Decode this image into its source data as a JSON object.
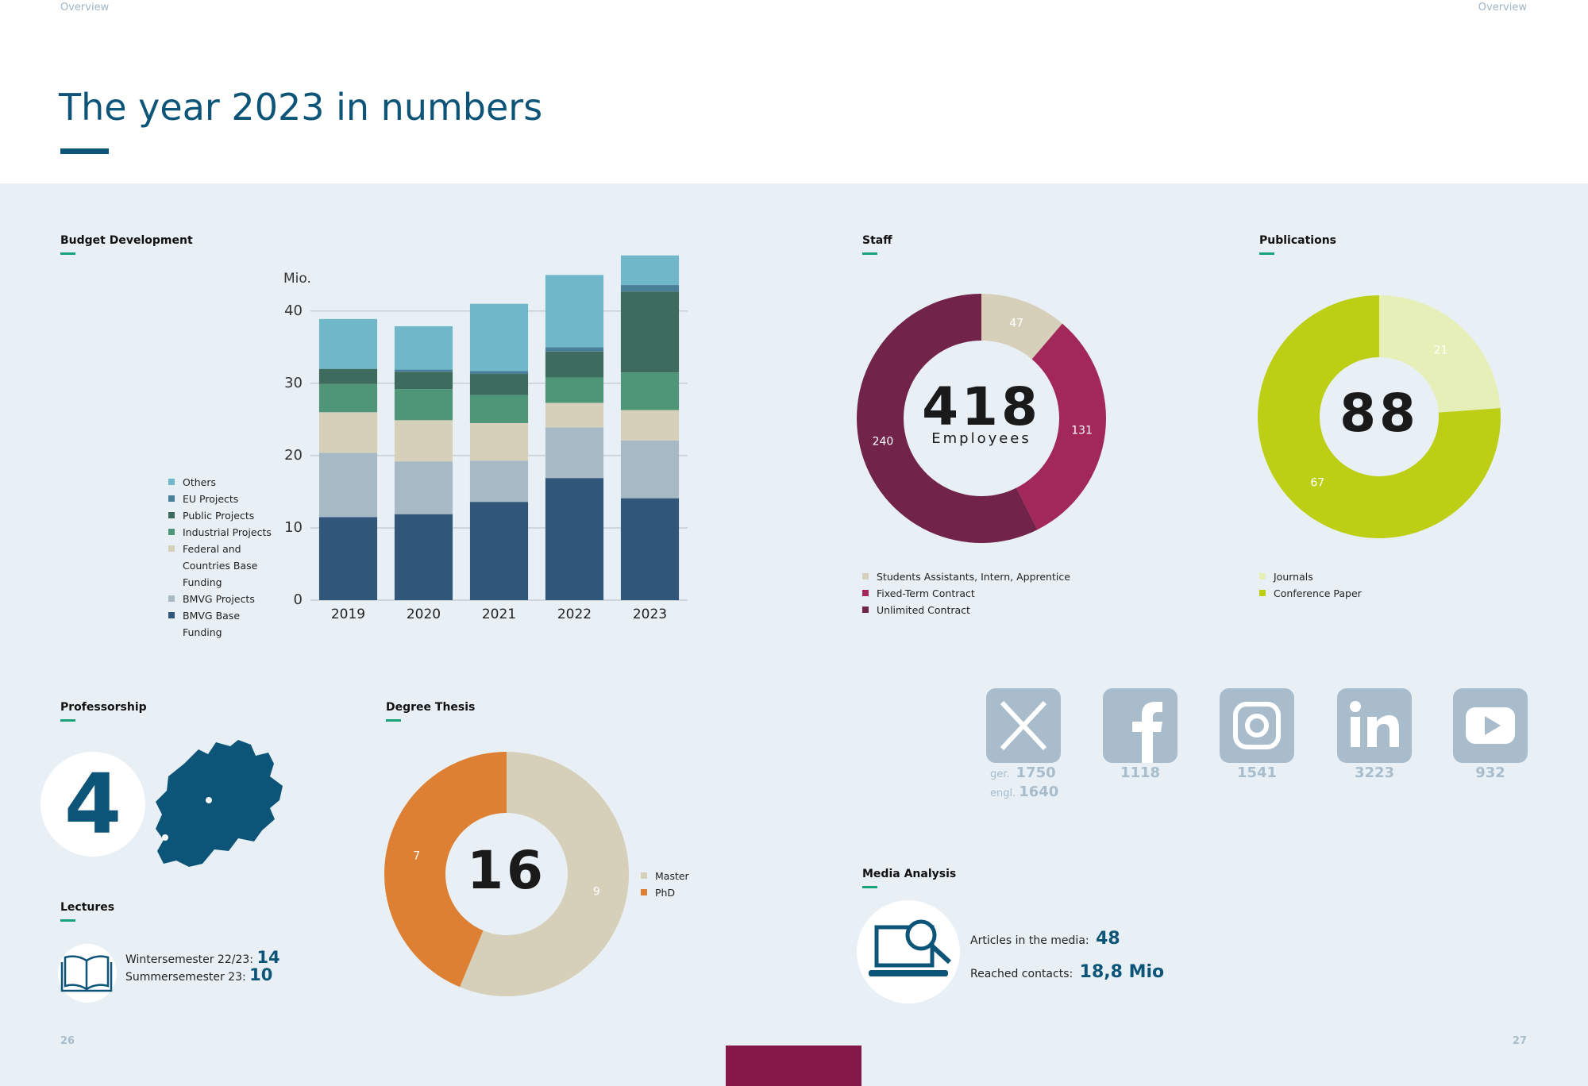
{
  "header": {
    "left": "Overview",
    "right": "Overview",
    "title": "The year 2023 in numbers"
  },
  "chart_data": [
    {
      "type": "bar",
      "stacked": true,
      "title": "Budget Development",
      "ylabel": "Mio.",
      "categories": [
        "2019",
        "2020",
        "2021",
        "2022",
        "2023"
      ],
      "series": [
        {
          "name": "BMVG Base Funding",
          "color": "#30577a",
          "values": [
            11.5,
            11.9,
            13.6,
            16.9,
            14.1
          ]
        },
        {
          "name": "BMVG Projects",
          "color": "#a8b9c6",
          "values": [
            8.9,
            7.3,
            5.7,
            7.0,
            8.0
          ]
        },
        {
          "name": "Federal and Countries Base Funding",
          "color": "#d6cfba",
          "values": [
            5.6,
            5.7,
            5.2,
            3.4,
            4.2
          ]
        },
        {
          "name": "Industrial Projects",
          "color": "#4f9679",
          "values": [
            3.9,
            4.3,
            3.9,
            3.5,
            5.2
          ]
        },
        {
          "name": "Public Projects",
          "color": "#3d6b5e",
          "values": [
            2.1,
            2.4,
            2.9,
            3.6,
            11.2
          ]
        },
        {
          "name": "EU Projects",
          "color": "#4a7f9a",
          "values": [
            0,
            0.3,
            0.4,
            0.6,
            0.9
          ]
        },
        {
          "name": "Others",
          "color": "#6fb7c9",
          "values": [
            6.9,
            6.0,
            9.3,
            10.0,
            4.1
          ]
        }
      ],
      "ylim": [
        0,
        48
      ],
      "yticks": [
        0,
        10,
        20,
        30,
        40
      ],
      "grid": true
    },
    {
      "type": "donut",
      "title": "Staff",
      "center_value": 418,
      "center_label": "Employees",
      "categories": [
        "Students Assistants, Intern, Apprentice",
        "Fixed-Term Contract",
        "Unlimited Contract"
      ],
      "values": [
        47,
        131,
        240
      ],
      "colors": [
        "#d6cfba",
        "#a3285a",
        "#72234a"
      ]
    },
    {
      "type": "donut",
      "title": "Publications",
      "center_value": 88,
      "categories": [
        "Journals",
        "Conference Paper"
      ],
      "values": [
        21,
        67
      ],
      "colors": [
        "#e6efb8",
        "#bccf14"
      ]
    },
    {
      "type": "donut",
      "title": "Degree Thesis",
      "center_value": 16,
      "categories": [
        "Master",
        "PhD"
      ],
      "values": [
        9,
        7
      ],
      "colors": [
        "#d6cfba",
        "#dd8033"
      ]
    }
  ],
  "professorship": {
    "title": "Professorship",
    "value": 4
  },
  "lectures": {
    "title": "Lectures",
    "items": [
      {
        "label": "Wintersemester 22/23:",
        "value": 14
      },
      {
        "label": "Summersemester 23:",
        "value": 10
      }
    ]
  },
  "social": [
    {
      "items": [
        {
          "label": "ger.",
          "value": 1750
        },
        {
          "label": "engl.",
          "value": 1640
        }
      ]
    },
    {
      "value": 1118
    },
    {
      "value": 1541
    },
    {
      "value": 3223
    },
    {
      "value": 932
    }
  ],
  "media": {
    "title": "Media Analysis",
    "items": [
      {
        "label": "Articles in the media:",
        "value": 48
      },
      {
        "label": "Reached contacts:",
        "value": "18,8 Mio"
      }
    ]
  },
  "page_numbers": [
    "26",
    "27"
  ]
}
